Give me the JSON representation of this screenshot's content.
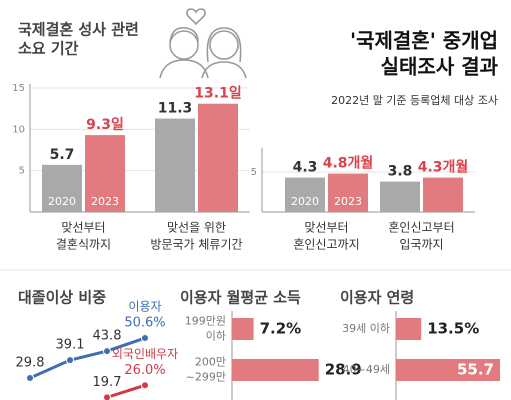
{
  "header": {
    "title": [
      "'국제결혼' 중개업",
      "실태조사 결과"
    ],
    "subtitle": "2022년 말 기준 등록업체 대상 조사"
  },
  "chart_data": [
    {
      "type": "bar",
      "title": [
        "국제결혼 성사 관련",
        "소요 기간"
      ],
      "categories": [
        [
          "맞선부터",
          "결혼식까지"
        ],
        [
          "맞선을 위한",
          "방문국가 체류기간"
        ]
      ],
      "series": [
        {
          "name": "2020",
          "color": "#a9a9a9",
          "values": [
            5.7,
            11.3
          ]
        },
        {
          "name": "2023",
          "color": "#e27b80",
          "values": [
            9.3,
            13.1
          ],
          "value_labels": [
            "9.3일",
            "13.1일"
          ]
        }
      ],
      "ylim": [
        0,
        15
      ],
      "yticks": [
        5,
        10,
        15
      ],
      "grid": true
    },
    {
      "type": "bar",
      "categories": [
        [
          "맞선부터",
          "혼인신고까지"
        ],
        [
          "혼인신고부터",
          "입국까지"
        ]
      ],
      "series": [
        {
          "name": "2020",
          "color": "#a9a9a9",
          "values": [
            4.3,
            3.8
          ]
        },
        {
          "name": "2023",
          "color": "#e27b80",
          "values": [
            4.8,
            4.3
          ],
          "value_labels": [
            "4.8개월",
            "4.3개월"
          ]
        }
      ],
      "ylim": [
        0,
        7.5
      ],
      "yticks": [
        5
      ],
      "grid": true
    },
    {
      "type": "line",
      "title": "대졸이상 비중",
      "categories": [
        null,
        null,
        null,
        null
      ],
      "series": [
        {
          "name": "이용자",
          "color": "#3d6fb4",
          "values": [
            29.8,
            39.1,
            43.8,
            50.6
          ],
          "value_labels": [
            "29.8",
            "39.1",
            "43.8",
            "50.6%"
          ]
        },
        {
          "name": "외국인배우자",
          "color": "#d23b45",
          "values": [
            null,
            null,
            19.7,
            26.0
          ],
          "value_labels": [
            null,
            null,
            "19.7",
            "26.0%"
          ]
        }
      ],
      "ylim": [
        10,
        60
      ]
    },
    {
      "type": "barh",
      "title": "이용자 월평균 소득",
      "categories": [
        [
          "199만원",
          "이하"
        ],
        [
          "200만",
          "~299만"
        ]
      ],
      "values": [
        7.2,
        28.9
      ],
      "value_labels": [
        "7.2%",
        "28.9"
      ],
      "color": "#e27b80",
      "xlim": [
        0,
        30
      ]
    },
    {
      "type": "barh",
      "title": "이용자 연령",
      "categories": [
        [
          "39세 이하"
        ],
        [
          "40~49세"
        ]
      ],
      "values": [
        13.5,
        55.7
      ],
      "value_labels": [
        "13.5%",
        "55.7"
      ],
      "color": "#e27b80",
      "xlim": [
        0,
        60
      ]
    }
  ]
}
